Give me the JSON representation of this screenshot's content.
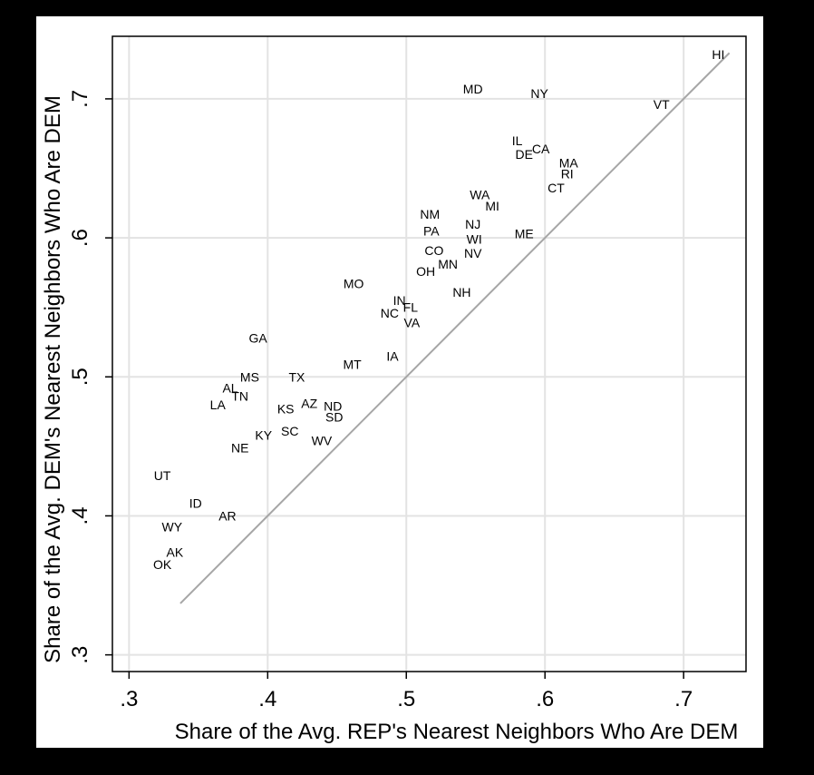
{
  "chart_data": {
    "type": "scatter",
    "title": "",
    "xlabel": "Share of the Avg. REP's Nearest Neighbors Who Are DEM",
    "ylabel": "Share of the Avg. DEM's Nearest Neighbors Who Are DEM",
    "xlim": [
      0.288,
      0.745
    ],
    "ylim": [
      0.288,
      0.745
    ],
    "xticks": [
      0.3,
      0.4,
      0.5,
      0.6,
      0.7
    ],
    "yticks": [
      0.3,
      0.4,
      0.5,
      0.6,
      0.7
    ],
    "xtick_labels": [
      ".3",
      ".4",
      ".5",
      ".6",
      ".7"
    ],
    "ytick_labels": [
      ".3",
      ".4",
      ".5",
      ".6",
      ".7"
    ],
    "grid": true,
    "reference_line": {
      "type": "45-degree line",
      "from": 0.337,
      "to": 0.733,
      "color": "#a6a6a6"
    },
    "marker": "state label",
    "colors": {
      "grid": "#e3e3e3",
      "axis": "#000000",
      "reference_line": "#a6a6a6",
      "label": "#000000"
    },
    "points": [
      {
        "label": "HI",
        "x": 0.725,
        "y": 0.732
      },
      {
        "label": "MD",
        "x": 0.548,
        "y": 0.707
      },
      {
        "label": "NY",
        "x": 0.596,
        "y": 0.704
      },
      {
        "label": "VT",
        "x": 0.684,
        "y": 0.696
      },
      {
        "label": "IL",
        "x": 0.58,
        "y": 0.67
      },
      {
        "label": "CA",
        "x": 0.597,
        "y": 0.664
      },
      {
        "label": "DE",
        "x": 0.585,
        "y": 0.66
      },
      {
        "label": "MA",
        "x": 0.617,
        "y": 0.654
      },
      {
        "label": "RI",
        "x": 0.616,
        "y": 0.646
      },
      {
        "label": "CT",
        "x": 0.608,
        "y": 0.636
      },
      {
        "label": "WA",
        "x": 0.553,
        "y": 0.631
      },
      {
        "label": "MI",
        "x": 0.562,
        "y": 0.623
      },
      {
        "label": "NM",
        "x": 0.517,
        "y": 0.617
      },
      {
        "label": "NJ",
        "x": 0.548,
        "y": 0.61
      },
      {
        "label": "PA",
        "x": 0.518,
        "y": 0.605
      },
      {
        "label": "ME",
        "x": 0.585,
        "y": 0.603
      },
      {
        "label": "WI",
        "x": 0.549,
        "y": 0.599
      },
      {
        "label": "CO",
        "x": 0.52,
        "y": 0.591
      },
      {
        "label": "NV",
        "x": 0.548,
        "y": 0.589
      },
      {
        "label": "MN",
        "x": 0.53,
        "y": 0.581
      },
      {
        "label": "OH",
        "x": 0.514,
        "y": 0.576
      },
      {
        "label": "MO",
        "x": 0.462,
        "y": 0.567
      },
      {
        "label": "NH",
        "x": 0.54,
        "y": 0.561
      },
      {
        "label": "IN",
        "x": 0.495,
        "y": 0.555
      },
      {
        "label": "FL",
        "x": 0.503,
        "y": 0.55
      },
      {
        "label": "NC",
        "x": 0.488,
        "y": 0.546
      },
      {
        "label": "VA",
        "x": 0.504,
        "y": 0.539
      },
      {
        "label": "GA",
        "x": 0.393,
        "y": 0.528
      },
      {
        "label": "IA",
        "x": 0.49,
        "y": 0.515
      },
      {
        "label": "MT",
        "x": 0.461,
        "y": 0.509
      },
      {
        "label": "MS",
        "x": 0.387,
        "y": 0.5
      },
      {
        "label": "TX",
        "x": 0.421,
        "y": 0.5
      },
      {
        "label": "AL",
        "x": 0.373,
        "y": 0.492
      },
      {
        "label": "TN",
        "x": 0.38,
        "y": 0.486
      },
      {
        "label": "LA",
        "x": 0.364,
        "y": 0.48
      },
      {
        "label": "AZ",
        "x": 0.43,
        "y": 0.481
      },
      {
        "label": "ND",
        "x": 0.447,
        "y": 0.479
      },
      {
        "label": "KS",
        "x": 0.413,
        "y": 0.477
      },
      {
        "label": "SD",
        "x": 0.448,
        "y": 0.471
      },
      {
        "label": "SC",
        "x": 0.416,
        "y": 0.461
      },
      {
        "label": "KY",
        "x": 0.397,
        "y": 0.458
      },
      {
        "label": "WV",
        "x": 0.439,
        "y": 0.454
      },
      {
        "label": "NE",
        "x": 0.38,
        "y": 0.449
      },
      {
        "label": "UT",
        "x": 0.324,
        "y": 0.429
      },
      {
        "label": "ID",
        "x": 0.348,
        "y": 0.409
      },
      {
        "label": "AR",
        "x": 0.371,
        "y": 0.4
      },
      {
        "label": "WY",
        "x": 0.331,
        "y": 0.392
      },
      {
        "label": "AK",
        "x": 0.333,
        "y": 0.374
      },
      {
        "label": "OK",
        "x": 0.324,
        "y": 0.365
      }
    ]
  }
}
